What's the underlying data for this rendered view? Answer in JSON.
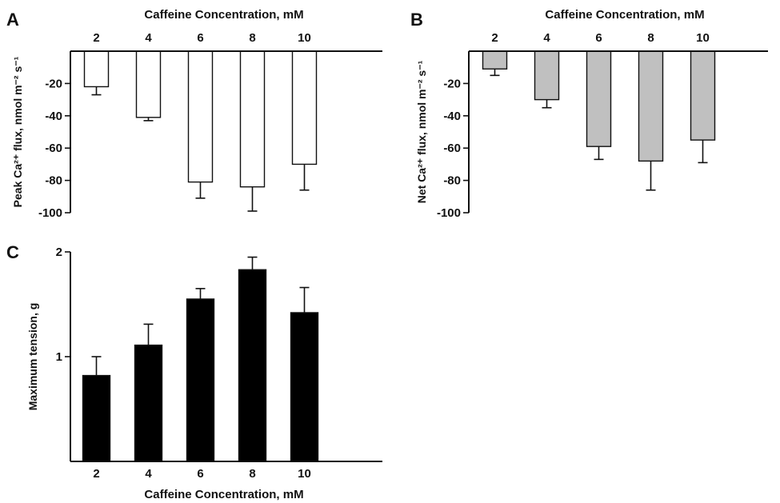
{
  "chart_data": [
    {
      "panel": "A",
      "type": "bar",
      "xlabel": "Caffeine Concentration, mM",
      "ylabel": "Peak Ca²⁺ flux, nmol m⁻² s⁻¹",
      "categories": [
        "2",
        "4",
        "6",
        "8",
        "10"
      ],
      "values": [
        -22,
        -41,
        -81,
        -84,
        -70
      ],
      "errors": [
        5,
        2,
        10,
        15,
        16
      ],
      "ylim": [
        -100,
        0
      ],
      "yticks": [
        "-20",
        "-40",
        "-60",
        "-80",
        "-100"
      ],
      "bar_color": "#ffffff",
      "grid": false
    },
    {
      "panel": "B",
      "type": "bar",
      "xlabel": "Caffeine Concentration, mM",
      "ylabel": "Net Ca²⁺ flux, nmol m⁻² s⁻¹",
      "categories": [
        "2",
        "4",
        "6",
        "8",
        "10"
      ],
      "values": [
        -11,
        -30,
        -59,
        -68,
        -55
      ],
      "errors": [
        4,
        5,
        8,
        18,
        14
      ],
      "ylim": [
        -100,
        0
      ],
      "yticks": [
        "-20",
        "-40",
        "-60",
        "-80",
        "-100"
      ],
      "bar_color": "#c0c0c0",
      "grid": false
    },
    {
      "panel": "C",
      "type": "bar",
      "xlabel": "Caffeine Concentration, mM",
      "ylabel": "Maximum tension, g",
      "categories": [
        "2",
        "4",
        "6",
        "8",
        "10"
      ],
      "values": [
        0.82,
        1.11,
        1.55,
        1.83,
        1.42
      ],
      "errors": [
        0.18,
        0.2,
        0.1,
        0.12,
        0.24
      ],
      "ylim": [
        0,
        2
      ],
      "yticks": [
        "1",
        "2"
      ],
      "bar_color": "#000000",
      "grid": false
    }
  ]
}
